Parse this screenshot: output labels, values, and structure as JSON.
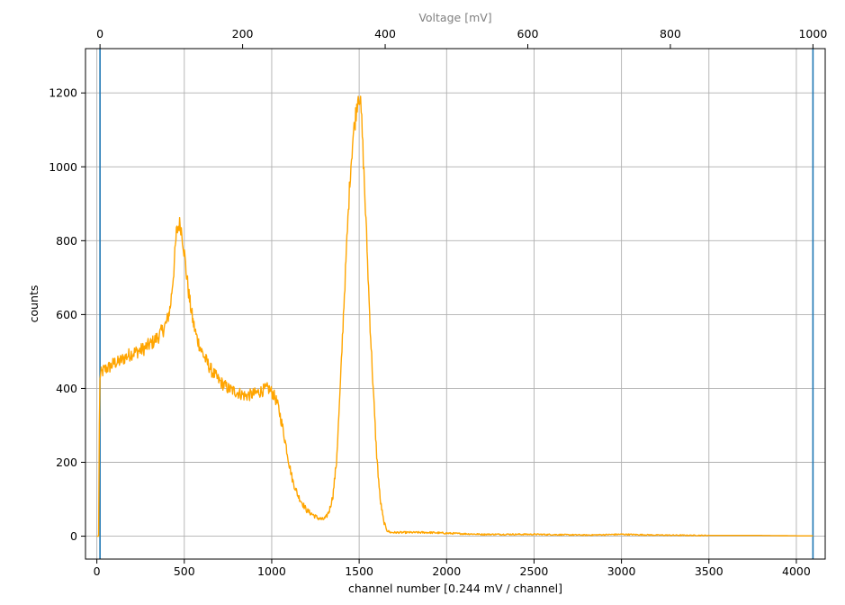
{
  "chart_data": {
    "type": "line",
    "xlabel": "channel number [0.244 mV / channel]",
    "ylabel": "counts",
    "top_axis": {
      "label": "Voltage [mV]",
      "label_color": "#808080",
      "ticks": [
        0,
        200,
        400,
        600,
        800,
        1000
      ],
      "tick_labels": [
        "0",
        "200",
        "400",
        "600",
        "800",
        "1000"
      ],
      "range": [
        0,
        1000
      ]
    },
    "xlim": [
      -65,
      4165
    ],
    "ylim": [
      -62,
      1320
    ],
    "x_ticks": [
      0,
      500,
      1000,
      1500,
      2000,
      2500,
      3000,
      3500,
      4000
    ],
    "x_tick_labels": [
      "0",
      "500",
      "1000",
      "1500",
      "2000",
      "2500",
      "3000",
      "3500",
      "4000"
    ],
    "y_ticks": [
      0,
      200,
      400,
      600,
      800,
      1000,
      1200
    ],
    "y_tick_labels": [
      "0",
      "200",
      "400",
      "600",
      "800",
      "1000",
      "1200"
    ],
    "grid": true,
    "vertical_lines": [
      {
        "x": 18,
        "color": "#1f77b4"
      },
      {
        "x": 4095,
        "color": "#1f77b4"
      }
    ],
    "series": [
      {
        "color": "#ffa500",
        "noise": 18,
        "x": [
          0,
          10,
          14,
          18,
          25,
          40,
          60,
          80,
          100,
          120,
          150,
          180,
          200,
          230,
          260,
          290,
          320,
          350,
          380,
          400,
          420,
          440,
          455,
          470,
          480,
          495,
          510,
          530,
          550,
          570,
          600,
          630,
          660,
          700,
          750,
          800,
          850,
          900,
          950,
          980,
          1000,
          1020,
          1040,
          1060,
          1080,
          1100,
          1120,
          1150,
          1180,
          1200,
          1230,
          1260,
          1290,
          1310,
          1330,
          1350,
          1370,
          1390,
          1410,
          1430,
          1450,
          1465,
          1480,
          1495,
          1505,
          1515,
          1530,
          1545,
          1560,
          1580,
          1600,
          1620,
          1640,
          1660,
          1680,
          1700,
          1750,
          1800,
          1900,
          2000,
          2200,
          2500,
          2800,
          3000,
          3200,
          3500,
          3800,
          4000,
          4095
        ],
        "y": [
          0,
          0,
          300,
          430,
          440,
          450,
          455,
          460,
          470,
          470,
          480,
          490,
          495,
          500,
          505,
          515,
          525,
          540,
          560,
          580,
          620,
          720,
          820,
          845,
          840,
          790,
          720,
          640,
          580,
          540,
          500,
          470,
          445,
          420,
          400,
          390,
          380,
          385,
          395,
          400,
          390,
          375,
          345,
          300,
          250,
          195,
          150,
          110,
          85,
          70,
          60,
          50,
          45,
          50,
          70,
          110,
          200,
          380,
          600,
          800,
          990,
          1080,
          1140,
          1200,
          1185,
          1120,
          950,
          780,
          600,
          400,
          220,
          100,
          40,
          15,
          10,
          10,
          10,
          10,
          10,
          8,
          5,
          5,
          3,
          5,
          3,
          2,
          2,
          1,
          1
        ]
      }
    ]
  }
}
